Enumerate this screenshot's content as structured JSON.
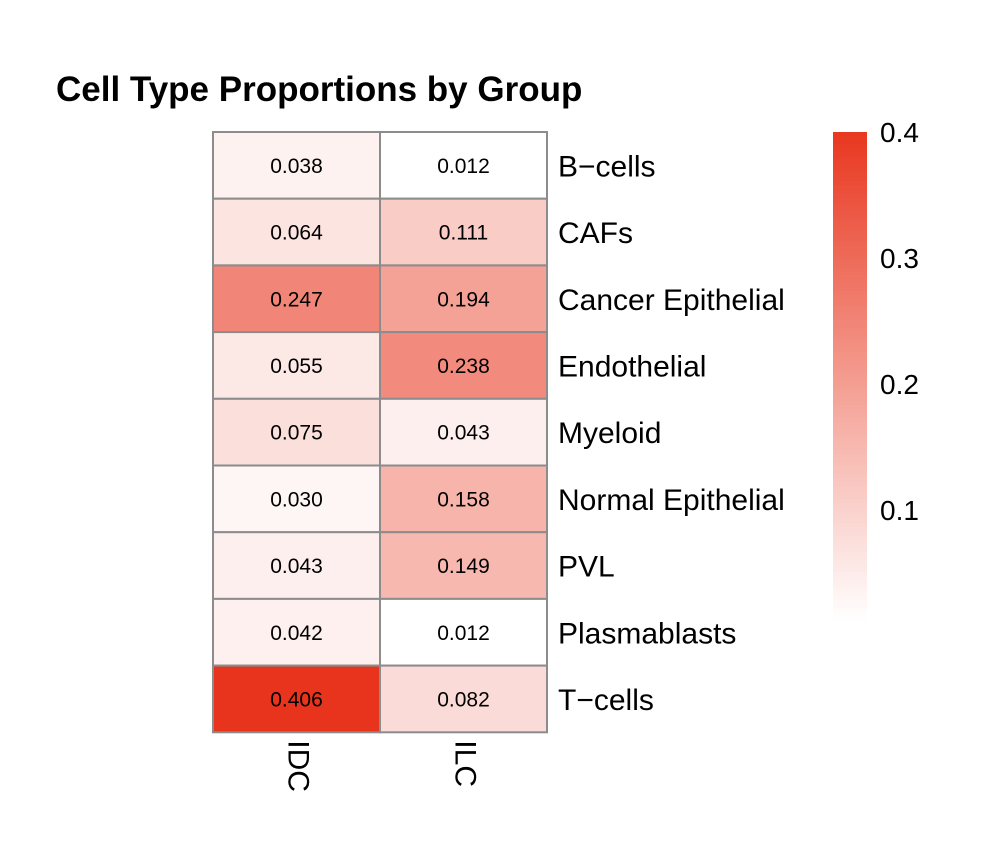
{
  "chart_data": {
    "type": "heatmap",
    "title": "Cell Type Proportions by Group",
    "columns": [
      "IDC",
      "ILC"
    ],
    "rows": [
      "B−cells",
      "CAFs",
      "Cancer Epithelial",
      "Endothelial",
      "Myeloid",
      "Normal Epithelial",
      "PVL",
      "Plasmablasts",
      "T−cells"
    ],
    "values": [
      [
        0.038,
        0.012
      ],
      [
        0.064,
        0.111
      ],
      [
        0.247,
        0.194
      ],
      [
        0.055,
        0.238
      ],
      [
        0.075,
        0.043
      ],
      [
        0.03,
        0.158
      ],
      [
        0.043,
        0.149
      ],
      [
        0.042,
        0.012
      ],
      [
        0.406,
        0.082
      ]
    ],
    "cell_labels": [
      [
        "0.038",
        "0.012"
      ],
      [
        "0.064",
        "0.111"
      ],
      [
        "0.247",
        "0.194"
      ],
      [
        "0.055",
        "0.238"
      ],
      [
        "0.075",
        "0.043"
      ],
      [
        "0.030",
        "0.158"
      ],
      [
        "0.043",
        "0.149"
      ],
      [
        "0.042",
        "0.012"
      ],
      [
        "0.406",
        "0.082"
      ]
    ],
    "color_scale": {
      "low_color": "#ffffff",
      "high_color": "#e8341c",
      "domain": [
        0.012,
        0.406
      ],
      "ticks": [
        0.1,
        0.2,
        0.3,
        0.4
      ],
      "tick_labels": [
        "0.1",
        "0.2",
        "0.3",
        "0.4"
      ]
    },
    "legend_placement": "right",
    "grid": true,
    "cell_border_color": "#8c8c8c"
  }
}
